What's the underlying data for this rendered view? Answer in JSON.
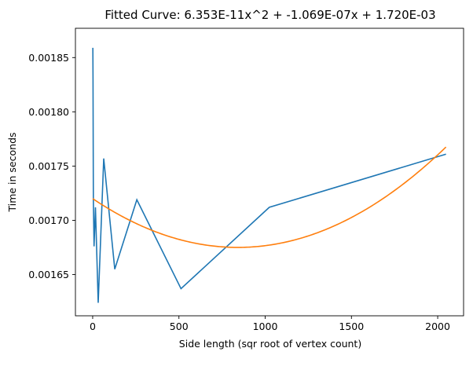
{
  "chart_data": {
    "type": "line",
    "title": "Fitted Curve: 6.353E-11x^2 + -1.069E-07x + 1.720E-03",
    "xlabel": "Side length (sqr root of vertex count)",
    "ylabel": "Time in seconds",
    "xlim": [
      -100,
      2150
    ],
    "ylim": [
      0.001612,
      0.001877
    ],
    "xticks": [
      0,
      500,
      1000,
      1500,
      2000
    ],
    "xtick_labels": [
      "0",
      "500",
      "1000",
      "1500",
      "2000"
    ],
    "yticks": [
      0.00165,
      0.0017,
      0.00175,
      0.0018,
      0.00185
    ],
    "ytick_labels": [
      "0.00165",
      "0.00170",
      "0.00175",
      "0.00180",
      "0.00185"
    ],
    "grid": false,
    "series": [
      {
        "color": "#1f77b4",
        "x": [
          1,
          2,
          4,
          8,
          16,
          32,
          64,
          128,
          256,
          512,
          1024,
          2048
        ],
        "y": [
          0.001859,
          0.00183,
          0.001718,
          0.001676,
          0.001712,
          0.001624,
          0.001757,
          0.001655,
          0.001719,
          0.001637,
          0.001712,
          0.001761
        ]
      },
      {
        "color": "#ff7f0e",
        "fit": {
          "a": 6.353e-11,
          "b": -1.069e-07,
          "c": 0.00172
        },
        "x_range": [
          0,
          2048
        ]
      }
    ]
  }
}
